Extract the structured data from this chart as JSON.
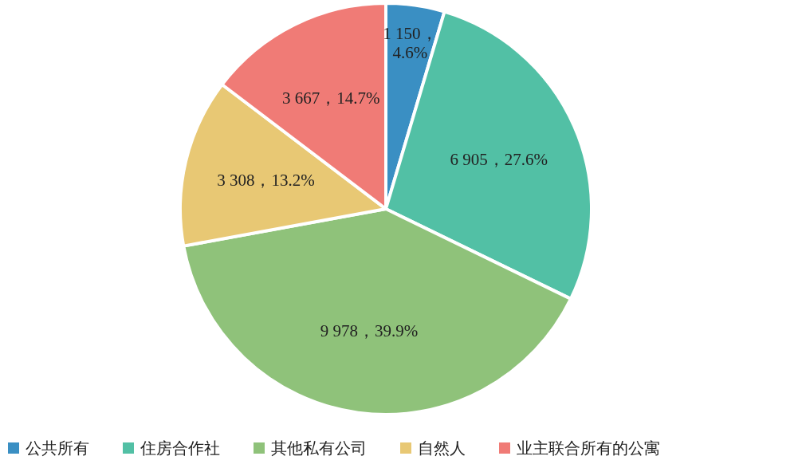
{
  "chart_data": {
    "type": "pie",
    "categories": [
      "公共所有",
      "住房合作社",
      "其他私有公司",
      "自然人",
      "业主联合所有的公寓"
    ],
    "values": [
      1150,
      6905,
      9978,
      3308,
      3667
    ],
    "colors": [
      "#3a8fc3",
      "#52c0a5",
      "#8fc27a",
      "#e8c874",
      "#f07b76"
    ],
    "value_labels": [
      "1 150，4.6%",
      "6 905，27.6%",
      "9 978，39.9%",
      "3 308，13.2%",
      "3 667，14.7%"
    ],
    "legend": "bottom"
  }
}
